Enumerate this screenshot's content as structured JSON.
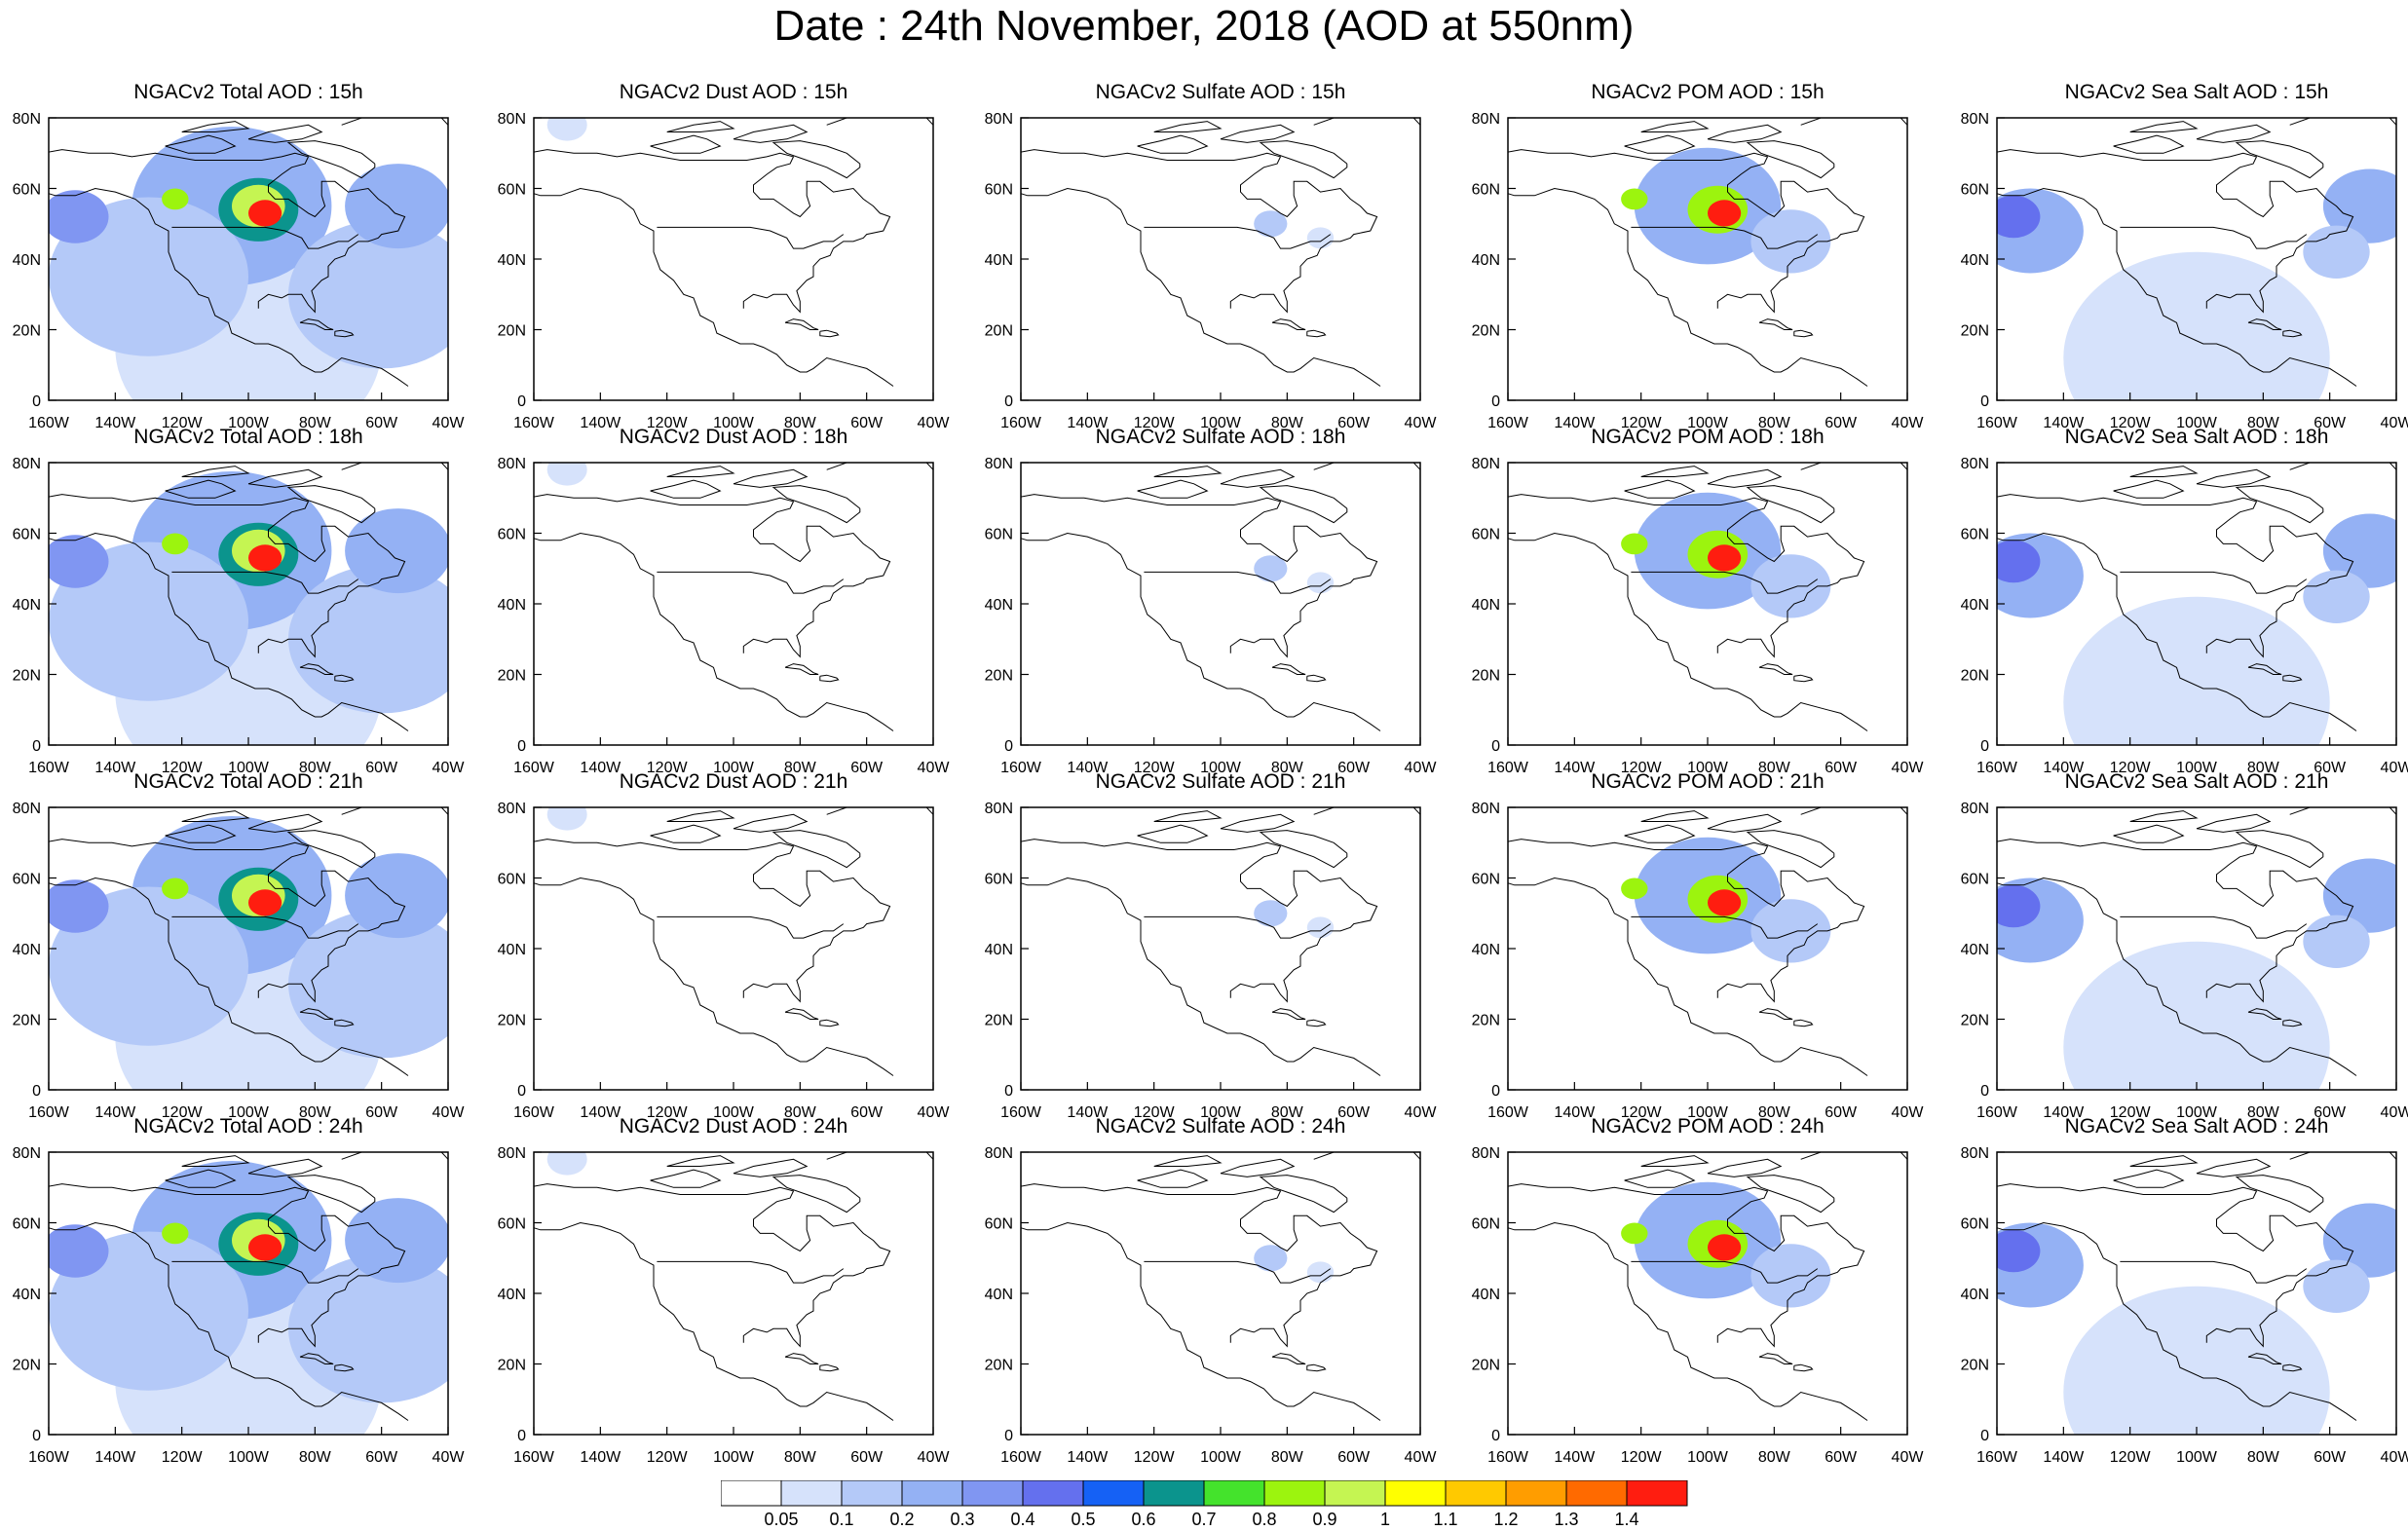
{
  "title": "Date : 24th November, 2018 (AOD at 550nm)",
  "panel_titles": [
    [
      "NGACv2 Total AOD : 15h",
      "NGACv2 Dust AOD : 15h",
      "NGACv2 Sulfate AOD : 15h",
      "NGACv2 POM AOD : 15h",
      "NGACv2 Sea Salt AOD : 15h"
    ],
    [
      "NGACv2 Total AOD : 18h",
      "NGACv2 Dust AOD : 18h",
      "NGACv2 Sulfate AOD : 18h",
      "NGACv2 POM AOD : 18h",
      "NGACv2 Sea Salt AOD : 18h"
    ],
    [
      "NGACv2 Total AOD : 21h",
      "NGACv2 Dust AOD : 21h",
      "NGACv2 Sulfate AOD : 21h",
      "NGACv2 POM AOD : 21h",
      "NGACv2 Sea Salt AOD : 21h"
    ],
    [
      "NGACv2 Total AOD : 24h",
      "NGACv2 Dust AOD : 24h",
      "NGACv2 Sulfate AOD : 24h",
      "NGACv2 POM AOD : 24h",
      "NGACv2 Sea Salt  AOD : 24h"
    ]
  ],
  "map": {
    "lon_range": [
      -160,
      -40
    ],
    "lat_range": [
      0,
      80
    ],
    "lon_ticks": [
      "160W",
      "140W",
      "120W",
      "100W",
      "80W",
      "60W",
      "40W"
    ],
    "lat_ticks": [
      "0",
      "20N",
      "40N",
      "60N",
      "80N"
    ]
  },
  "colorbar": {
    "labels": [
      "0.05",
      "0.1",
      "0.2",
      "0.3",
      "0.4",
      "0.5",
      "0.6",
      "0.7",
      "0.8",
      "0.9",
      "1",
      "1.1",
      "1.2",
      "1.3",
      "1.4"
    ],
    "colors": [
      "#ffffff",
      "#d6e2fb",
      "#b4c9f8",
      "#94b1f4",
      "#8096f2",
      "#6470ee",
      "#1561f5",
      "#0b948d",
      "#44e32c",
      "#9cf40e",
      "#c5f552",
      "#ffff00",
      "#ffc900",
      "#ff9d00",
      "#ff6a00",
      "#ff1d10"
    ]
  },
  "aod_features": {
    "total": [
      {
        "lon": -95,
        "lat": 53,
        "r": 5,
        "level": 15
      },
      {
        "lon": -97,
        "lat": 55,
        "r": 8,
        "level": 10
      },
      {
        "lon": -97,
        "lat": 54,
        "r": 12,
        "level": 7
      },
      {
        "lon": -122,
        "lat": 57,
        "r": 4,
        "level": 9
      },
      {
        "lon": -105,
        "lat": 55,
        "r": 30,
        "level": 3
      },
      {
        "lon": -152,
        "lat": 52,
        "r": 10,
        "level": 4
      },
      {
        "lon": -55,
        "lat": 55,
        "r": 16,
        "level": 3
      },
      {
        "lon": -130,
        "lat": 35,
        "r": 30,
        "level": 2
      },
      {
        "lon": -100,
        "lat": 15,
        "r": 40,
        "level": 1
      },
      {
        "lon": -60,
        "lat": 30,
        "r": 28,
        "level": 2
      }
    ],
    "dust": [
      {
        "lon": -150,
        "lat": 78,
        "r": 6,
        "level": 1
      }
    ],
    "sulfate": [
      {
        "lon": -85,
        "lat": 50,
        "r": 5,
        "level": 2
      },
      {
        "lon": -70,
        "lat": 46,
        "r": 4,
        "level": 1
      }
    ],
    "pom": [
      {
        "lon": -95,
        "lat": 53,
        "r": 5,
        "level": 15
      },
      {
        "lon": -97,
        "lat": 54,
        "r": 9,
        "level": 9
      },
      {
        "lon": -122,
        "lat": 57,
        "r": 4,
        "level": 9
      },
      {
        "lon": -100,
        "lat": 55,
        "r": 22,
        "level": 3
      },
      {
        "lon": -75,
        "lat": 45,
        "r": 12,
        "level": 2
      }
    ],
    "seasalt": [
      {
        "lon": -155,
        "lat": 52,
        "r": 8,
        "level": 5
      },
      {
        "lon": -150,
        "lat": 48,
        "r": 16,
        "level": 3
      },
      {
        "lon": -48,
        "lat": 55,
        "r": 14,
        "level": 3
      },
      {
        "lon": -58,
        "lat": 42,
        "r": 10,
        "level": 2
      },
      {
        "lon": -100,
        "lat": 12,
        "r": 40,
        "level": 1
      }
    ]
  }
}
